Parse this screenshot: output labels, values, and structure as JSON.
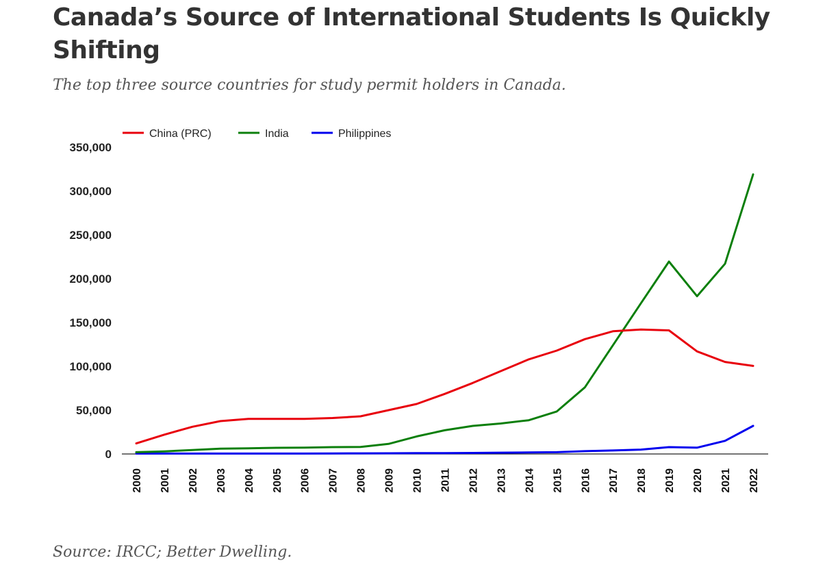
{
  "header": {
    "title": "Canada’s Source of International Students Is Quickly Shifting",
    "subtitle": "The top three source countries for study permit holders in Canada."
  },
  "footer": {
    "source": "Source: IRCC; Better Dwelling."
  },
  "chart_data": {
    "type": "line",
    "title": "Canada’s Source of International Students Is Quickly Shifting",
    "subtitle": "The top three source countries for study permit holders in Canada.",
    "xlabel": "",
    "ylabel": "",
    "x": [
      "2000",
      "2001",
      "2002",
      "2003",
      "2004",
      "2005",
      "2006",
      "2007",
      "2008",
      "2009",
      "2010",
      "2011",
      "2012",
      "2013",
      "2014",
      "2015",
      "2016",
      "2017",
      "2018",
      "2019",
      "2020",
      "2021",
      "2022"
    ],
    "ylim": [
      0,
      350000
    ],
    "yticks": [
      0,
      50000,
      100000,
      150000,
      200000,
      250000,
      300000,
      350000
    ],
    "ytick_labels": [
      "0",
      "50,000",
      "100,000",
      "150,000",
      "200,000",
      "250,000",
      "300,000",
      "350,000"
    ],
    "grid": false,
    "legend_position": "top-left",
    "series": [
      {
        "name": "China (PRC)",
        "color": "#e8000b",
        "values": [
          12000,
          22000,
          31000,
          37500,
          40000,
          40000,
          40000,
          41000,
          43000,
          50000,
          57000,
          68500,
          81000,
          94500,
          108000,
          118000,
          131000,
          140000,
          142000,
          141000,
          117000,
          105000,
          100500
        ]
      },
      {
        "name": "India",
        "color": "#0b7f0b",
        "values": [
          2000,
          3000,
          4500,
          6000,
          6500,
          7000,
          7200,
          7800,
          8000,
          11500,
          20000,
          27000,
          32000,
          34800,
          38500,
          48500,
          76000,
          124000,
          172000,
          219500,
          180000,
          217000,
          319000
        ]
      },
      {
        "name": "Philippines",
        "color": "#0000ee",
        "values": [
          500,
          500,
          500,
          500,
          500,
          500,
          500,
          600,
          700,
          800,
          900,
          1000,
          1200,
          1500,
          1700,
          2000,
          3200,
          4000,
          5000,
          7800,
          7200,
          15000,
          32000
        ]
      }
    ]
  }
}
